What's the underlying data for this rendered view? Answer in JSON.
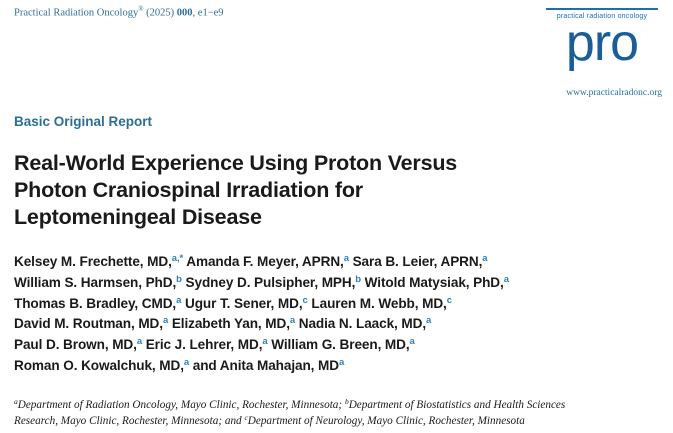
{
  "journal": {
    "name": "Practical Radiation Oncology",
    "reg_mark": "®",
    "year": "(2025)",
    "volume": "000",
    "pages": "e1−e9"
  },
  "logo": {
    "small_text": "practical radiation oncology",
    "word": "pro",
    "url": "www.practicalradonc.org"
  },
  "article_type": "Basic Original Report",
  "title_lines": [
    "Real-World Experience Using Proton Versus",
    "Photon Craniospinal Irradiation for",
    "Leptomeningeal Disease"
  ],
  "author_lines": [
    [
      {
        "name": "Kelsey M. Frechette, MD,",
        "sup": "a,*"
      },
      {
        "name": " Amanda F. Meyer, APRN,",
        "sup": "a"
      },
      {
        "name": " Sara B. Leier, APRN,",
        "sup": "a"
      }
    ],
    [
      {
        "name": "William S. Harmsen, PhD,",
        "sup": "b"
      },
      {
        "name": " Sydney D. Pulsipher, MPH,",
        "sup": "b"
      },
      {
        "name": " Witold Matysiak, PhD,",
        "sup": "a"
      }
    ],
    [
      {
        "name": "Thomas B. Bradley, CMD,",
        "sup": "a"
      },
      {
        "name": " Ugur T. Sener, MD,",
        "sup": "c"
      },
      {
        "name": " Lauren M. Webb, MD,",
        "sup": "c"
      }
    ],
    [
      {
        "name": "David M. Routman, MD,",
        "sup": "a"
      },
      {
        "name": " Elizabeth Yan, MD,",
        "sup": "a"
      },
      {
        "name": " Nadia N. Laack, MD,",
        "sup": "a"
      }
    ],
    [
      {
        "name": "Paul D. Brown, MD,",
        "sup": "a"
      },
      {
        "name": " Eric J. Lehrer, MD,",
        "sup": "a"
      },
      {
        "name": " William G. Breen, MD,",
        "sup": "a"
      }
    ],
    [
      {
        "name": "Roman O. Kowalchuk, MD,",
        "sup": "a"
      },
      {
        "name": " and Anita Mahajan, MD",
        "sup": "a"
      }
    ]
  ],
  "affiliations": {
    "line1": [
      {
        "sup": "a",
        "text": "Department of Radiation Oncology, Mayo Clinic, Rochester, Minnesota; "
      },
      {
        "sup": "b",
        "text": "Department of Biostatistics and Health Sciences"
      }
    ],
    "line2": [
      {
        "sup": "",
        "text": "Research, Mayo Clinic, Rochester, Minnesota; and "
      },
      {
        "sup": "c",
        "text": "Department of Neurology, Mayo Clinic, Rochester, Minnesota"
      }
    ]
  }
}
